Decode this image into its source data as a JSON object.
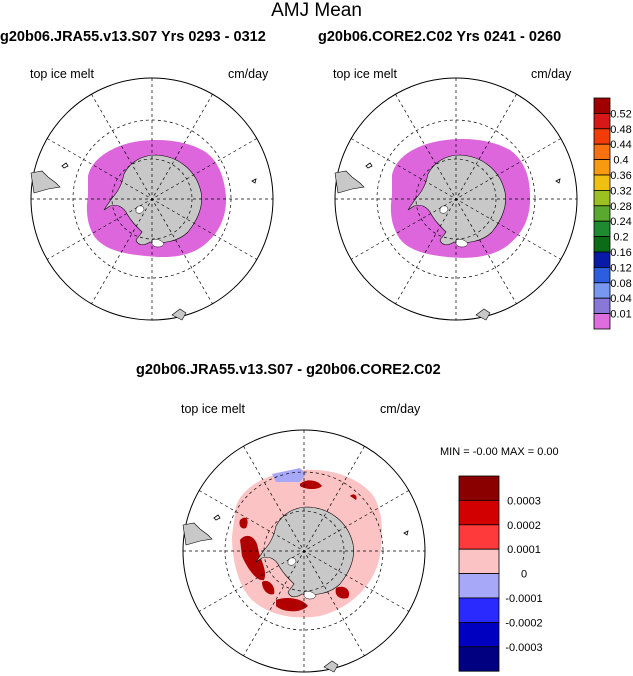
{
  "main_title": "AMJ Mean",
  "panels": {
    "left": {
      "title": "g20b06.JRA55.v13.S07  Yrs 0293 - 0312",
      "field_label": "top ice melt",
      "units": "cm/day"
    },
    "right": {
      "title": "g20b06.CORE2.C02  Yrs 0241 - 0260",
      "field_label": "top ice melt",
      "units": "cm/day"
    },
    "diff": {
      "title": "g20b06.JRA55.v13.S07 - g20b06.CORE2.C02",
      "field_label": "top ice melt",
      "units": "cm/day",
      "min_max": "MIN =  -0.00 MAX =   0.00"
    }
  },
  "colorbar_top": {
    "labels": [
      "0.52",
      "0.48",
      "0.44",
      "0.4",
      "0.36",
      "0.32",
      "0.28",
      "0.24",
      "0.2",
      "0.16",
      "0.12",
      "0.08",
      "0.04",
      "0.01"
    ],
    "colors": [
      "#a00000",
      "#d81818",
      "#f23c0a",
      "#f87010",
      "#f89a10",
      "#f0c010",
      "#9cc020",
      "#5aa830",
      "#1f8a30",
      "#0b6b16",
      "#0a1aa8",
      "#2e5ee0",
      "#7898f0",
      "#8a78d8",
      "#de6ede"
    ]
  },
  "colorbar_diff": {
    "labels": [
      "0.0003",
      "0.0002",
      "0.0001",
      "0",
      "-0.0001",
      "-0.0002",
      "-0.0003"
    ],
    "colors": [
      "#8a0000",
      "#d20000",
      "#ff3a3a",
      "#fbc3c3",
      "#a8a8f8",
      "#2a2aff",
      "#0000c0",
      "#000080"
    ]
  },
  "colors": {
    "land": "#c8c8c8",
    "melt": "#dd66dd",
    "diff_background": "#fbc3c3",
    "diff_positive": "#b00000",
    "diff_negative": "#a8a8f8"
  }
}
